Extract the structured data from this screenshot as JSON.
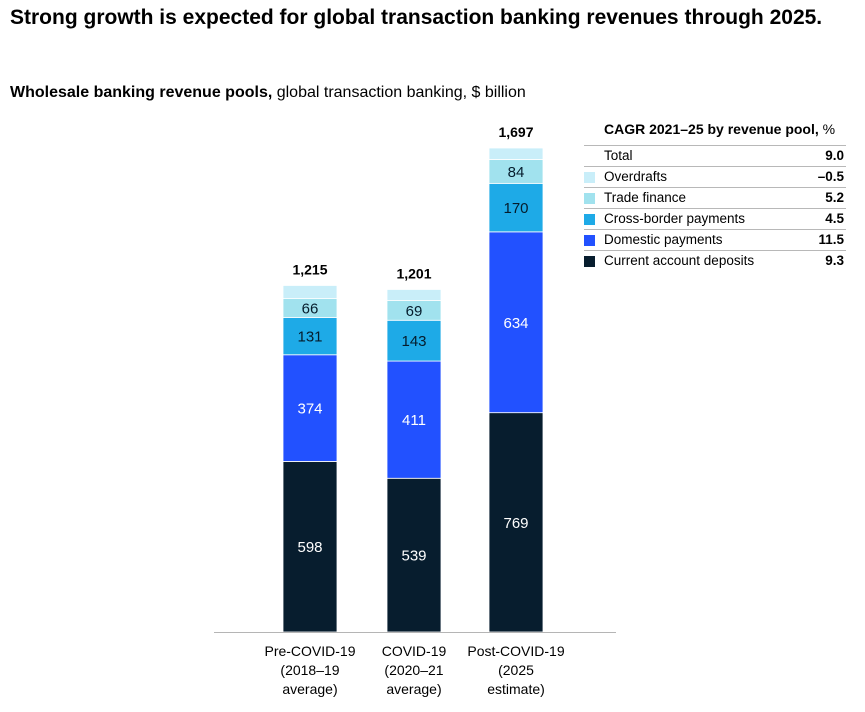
{
  "title": "Strong growth is expected for global transaction banking revenues through 2025.",
  "subtitle": {
    "bold": "Wholesale banking revenue pools,",
    "rest": " global transaction banking, $ billion"
  },
  "colors": {
    "current_account_deposits": "#071D2E",
    "domestic_payments": "#2251FF",
    "cross_border_payments": "#1EAAE7",
    "trade_finance": "#A1E2EE",
    "overdrafts": "#C9EEF9",
    "axis": "#b5b5b5"
  },
  "legend": {
    "heading_bold": "CAGR 2021–25 by revenue pool,",
    "heading_rest": " %",
    "rows": [
      {
        "label": "Total",
        "value": "9.0",
        "swatch": null
      },
      {
        "label": "Overdrafts",
        "value": "–0.5",
        "swatch": "#C9EEF9"
      },
      {
        "label": "Trade finance",
        "value": "5.2",
        "swatch": "#A1E2EE"
      },
      {
        "label": "Cross-border payments",
        "value": "4.5",
        "swatch": "#1EAAE7"
      },
      {
        "label": "Domestic payments",
        "value": "11.5",
        "swatch": "#2251FF"
      },
      {
        "label": "Current account deposits",
        "value": "9.3",
        "swatch": "#071D2E"
      }
    ]
  },
  "chart_data": {
    "type": "bar",
    "stacked": true,
    "categories": [
      [
        "Pre-COVID-19",
        "(2018–19",
        "average)"
      ],
      [
        "COVID-19",
        "(2020–21",
        "average)"
      ],
      [
        "Post-COVID-19",
        "(2025",
        "estimate)"
      ]
    ],
    "totals": [
      "1,215",
      "1,201",
      "1,697"
    ],
    "series": [
      {
        "name": "Current account deposits",
        "values": [
          598,
          539,
          769
        ],
        "labels": [
          "598",
          "539",
          "769"
        ],
        "color": "#071D2E",
        "label_color": "#ffffff"
      },
      {
        "name": "Domestic payments",
        "values": [
          374,
          411,
          634
        ],
        "labels": [
          "374",
          "411",
          "634"
        ],
        "color": "#2251FF",
        "label_color": "#ffffff"
      },
      {
        "name": "Cross-border payments",
        "values": [
          131,
          143,
          170
        ],
        "labels": [
          "131",
          "143",
          "170"
        ],
        "color": "#1EAAE7",
        "label_color": "#051C2C"
      },
      {
        "name": "Trade finance",
        "values": [
          66,
          69,
          84
        ],
        "labels": [
          "66",
          "69",
          "84"
        ],
        "color": "#A1E2EE",
        "label_color": "#051C2C"
      },
      {
        "name": "Overdrafts",
        "values": [
          46,
          39,
          40
        ],
        "labels": [
          "",
          "",
          ""
        ],
        "color": "#C9EEF9",
        "label_color": "#051C2C"
      }
    ],
    "ylim": [
      0,
      1697
    ],
    "xlabel": "",
    "ylabel": ""
  }
}
